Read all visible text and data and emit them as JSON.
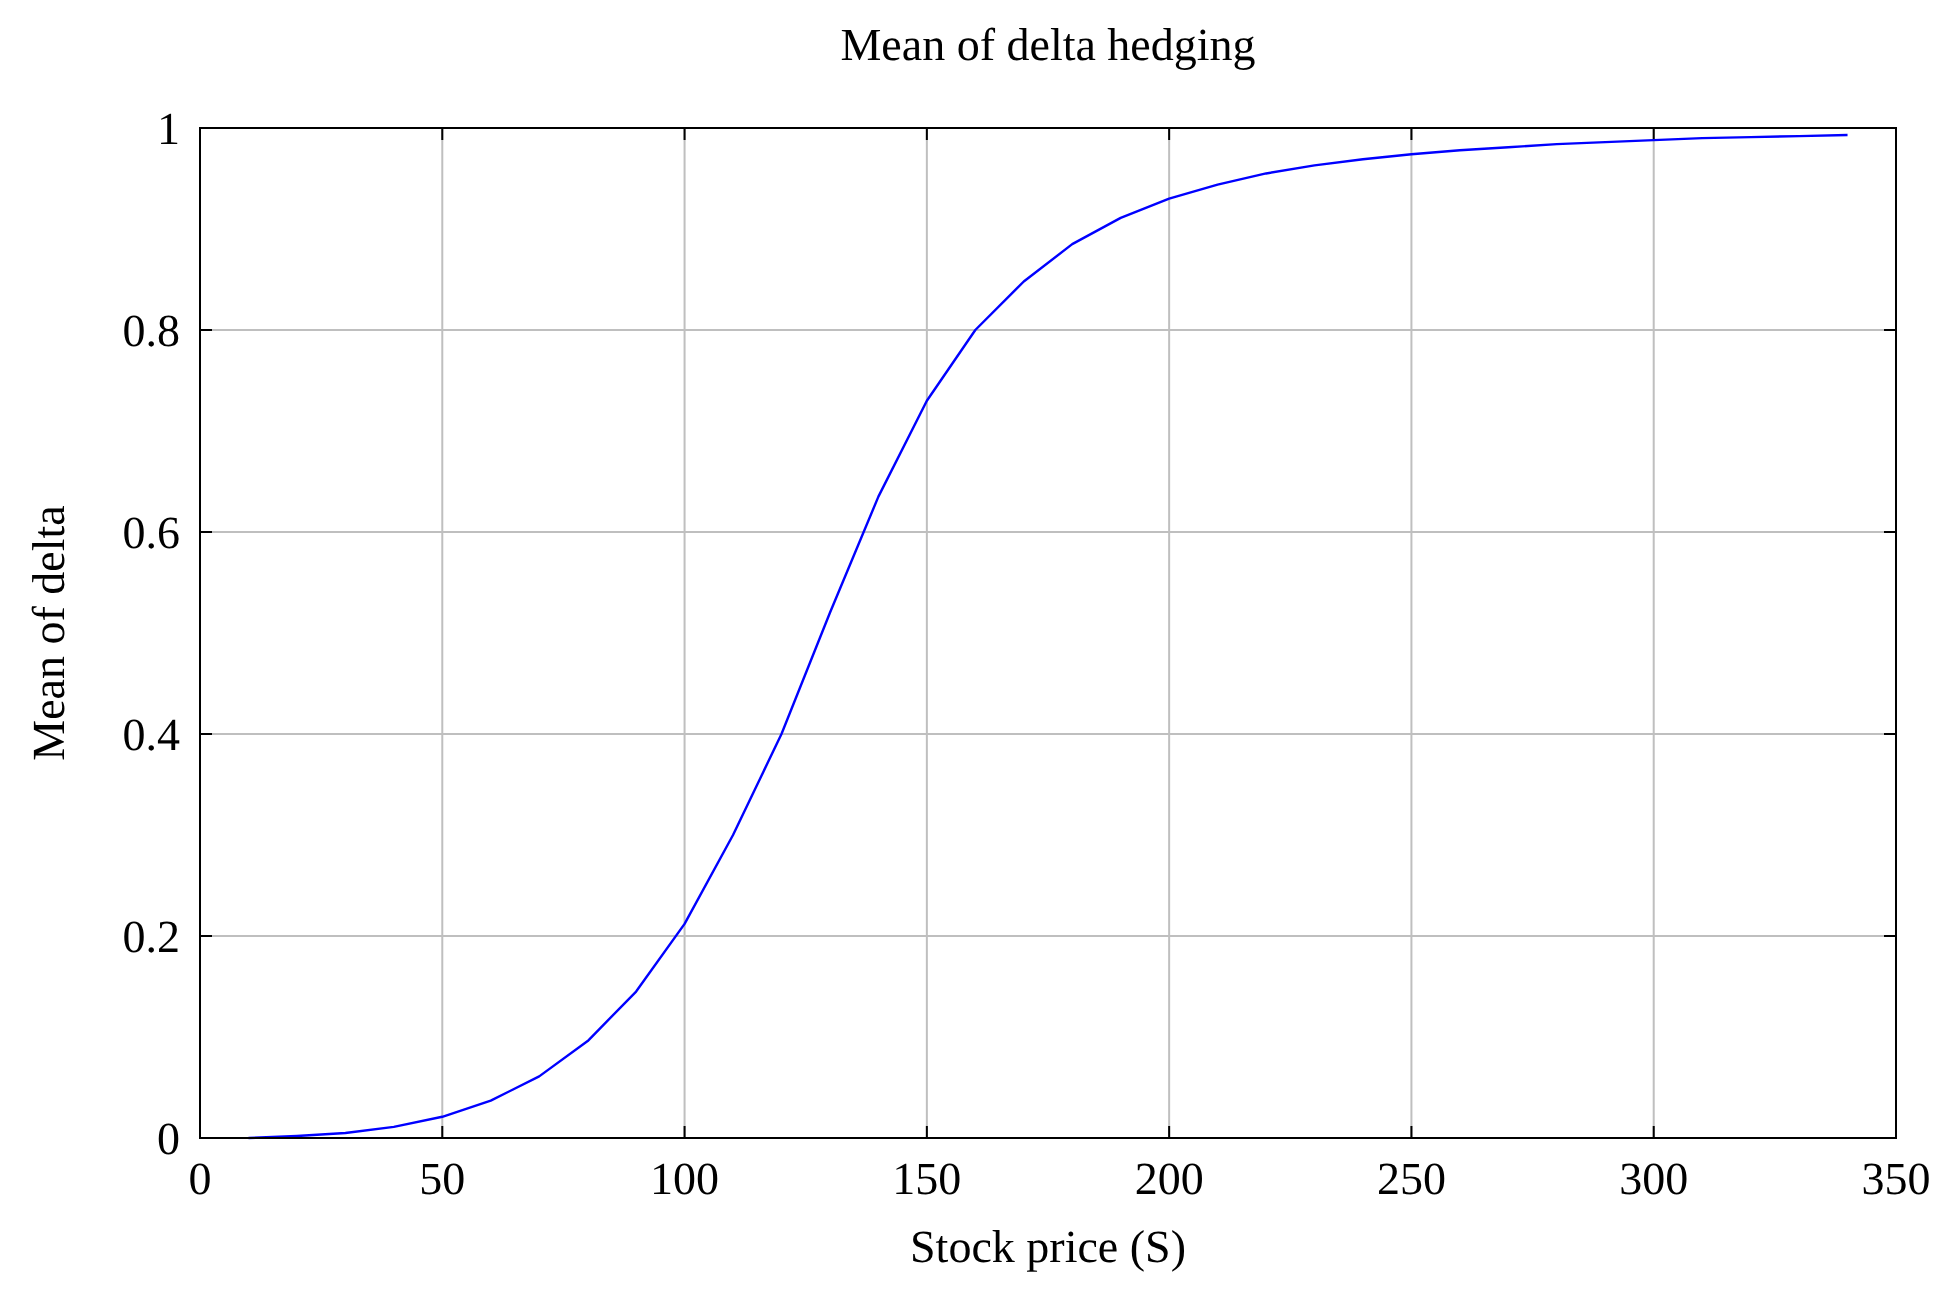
{
  "chart_data": {
    "type": "line",
    "title": "Mean of delta hedging",
    "xlabel": "Stock price (S)",
    "ylabel": "Mean of delta",
    "x": [
      10,
      20,
      30,
      40,
      50,
      60,
      70,
      80,
      90,
      100,
      110,
      120,
      130,
      140,
      150,
      160,
      170,
      180,
      190,
      200,
      210,
      220,
      230,
      240,
      250,
      260,
      270,
      280,
      290,
      300,
      310,
      320,
      330,
      340
    ],
    "series": [
      {
        "color": "#0000ff",
        "values": [
          0,
          0.002,
          0.005,
          0.011,
          0.021,
          0.037,
          0.061,
          0.096,
          0.145,
          0.212,
          0.3,
          0.4,
          0.52,
          0.635,
          0.73,
          0.8,
          0.848,
          0.885,
          0.911,
          0.93,
          0.944,
          0.955,
          0.963,
          0.969,
          0.974,
          0.978,
          0.981,
          0.984,
          0.986,
          0.988,
          0.99,
          0.991,
          0.992,
          0.993
        ]
      }
    ],
    "xlim": [
      0,
      350
    ],
    "xticks": [
      0,
      50,
      100,
      150,
      200,
      250,
      300,
      350
    ],
    "ylim": [
      0,
      1
    ],
    "yticks": [
      0,
      0.2,
      0.4,
      0.6,
      0.8,
      1
    ],
    "grid": true,
    "marker": "none",
    "line_style": "solid"
  }
}
